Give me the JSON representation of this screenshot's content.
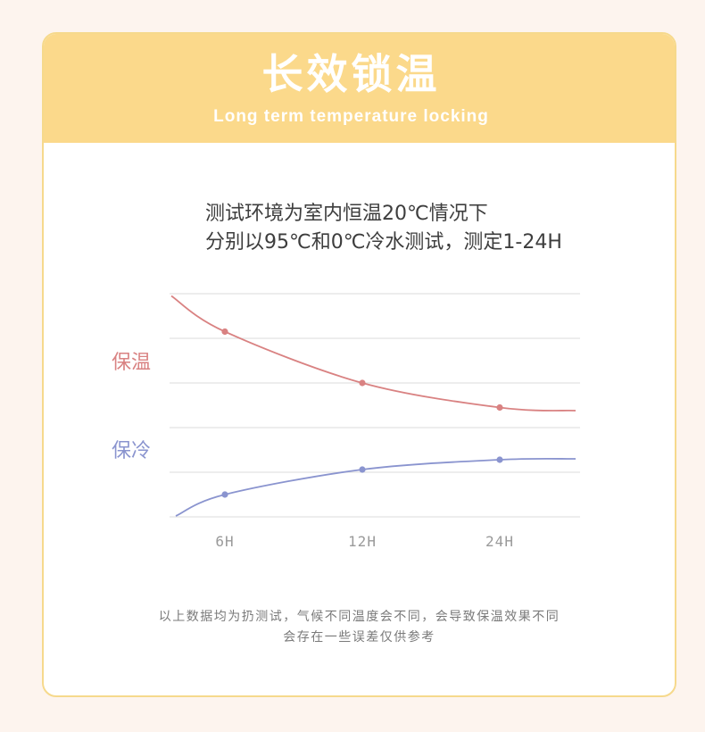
{
  "header": {
    "title": "长效锁温",
    "subtitle": "Long term temperature locking"
  },
  "intro": {
    "line1": "测试环境为室内恒温20℃情况下",
    "line2": "分别以95℃和0℃冷水测试，测定1-24H"
  },
  "footer": {
    "line1": "以上数据均为扔测试，气候不同温度会不同，会导致保温效果不同",
    "line2": "会存在一些误差仅供参考"
  },
  "colors": {
    "background": "#fdf4ee",
    "header": "#fbd98b",
    "border": "#f6d98c",
    "grid": "#e2e2e2"
  },
  "chart_data": {
    "type": "line",
    "categories": [
      "6H",
      "12H",
      "24H"
    ],
    "series": [
      {
        "name": "保温",
        "values": [
          4.15,
          3.0,
          2.45
        ],
        "curve_start": 4.95,
        "curve_end": 2.38,
        "color": "#d98282"
      },
      {
        "name": "保冷",
        "values": [
          0.5,
          1.06,
          1.28
        ],
        "curve_start": 0.02,
        "curve_end": 1.3,
        "color": "#8a94cf"
      }
    ],
    "title": "",
    "xlabel": "",
    "ylabel": "",
    "ylim": [
      0,
      5
    ],
    "grid": true,
    "legend": "left"
  }
}
